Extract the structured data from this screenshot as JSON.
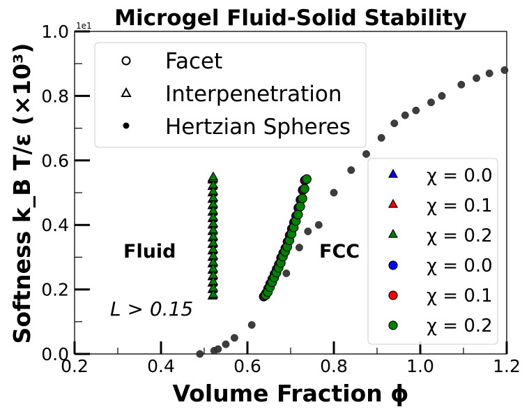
{
  "chart_data": {
    "type": "scatter",
    "title": "Microgel Fluid-Solid Stability",
    "xlabel": "Volume Fraction ϕ",
    "ylabel": "Softness k_B T/ε (×10³)",
    "xlim": [
      0.2,
      1.2
    ],
    "ylim": [
      0.0,
      1.0
    ],
    "x_ticks": [
      "0.2",
      "0.4",
      "0.6",
      "0.8",
      "1.0",
      "1.2"
    ],
    "y_ticks": [
      "0.0",
      "0.2",
      "0.4",
      "0.6",
      "0.8",
      "1.0"
    ],
    "y_offset_text": "1e1",
    "annotations": [
      {
        "text": "Fluid",
        "x": 0.38,
        "y": 0.31
      },
      {
        "text": "FCC",
        "x": 0.81,
        "y": 0.31
      },
      {
        "text": "L > 0.15",
        "x": 0.37,
        "y": 0.14
      }
    ],
    "legend_markers": {
      "placement": "upper-left",
      "entries": [
        {
          "marker": "open-circle",
          "label": "Facet"
        },
        {
          "marker": "open-triangle",
          "label": "Interpenetration"
        },
        {
          "marker": "filled-circle",
          "label": "Hertzian Spheres"
        }
      ]
    },
    "legend_chi": {
      "placement": "lower-right",
      "entries": [
        {
          "marker": "triangle",
          "color": "#0000ff",
          "label": "χ = 0.0"
        },
        {
          "marker": "triangle",
          "color": "#ff0000",
          "label": "χ = 0.1"
        },
        {
          "marker": "triangle",
          "color": "#008000",
          "label": "χ = 0.2"
        },
        {
          "marker": "circle",
          "color": "#0000ff",
          "label": "χ = 0.0"
        },
        {
          "marker": "circle",
          "color": "#ff0000",
          "label": "χ = 0.1"
        },
        {
          "marker": "circle",
          "color": "#008000",
          "label": "χ = 0.2"
        }
      ]
    },
    "series": [
      {
        "label": "Hertzian Spheres",
        "marker": "filled-circle",
        "color": "#333333",
        "x": [
          0.49,
          0.523,
          0.532,
          0.55,
          0.57,
          0.61,
          0.69,
          0.72,
          0.74,
          0.765,
          0.8,
          0.84,
          0.875,
          0.91,
          0.94,
          0.965,
          0.99,
          1.025,
          1.05,
          1.095,
          1.13,
          1.16,
          1.195
        ],
        "y": [
          0.0,
          0.01,
          0.015,
          0.03,
          0.05,
          0.09,
          0.25,
          0.33,
          0.38,
          0.4,
          0.5,
          0.57,
          0.62,
          0.67,
          0.715,
          0.74,
          0.755,
          0.78,
          0.8,
          0.835,
          0.855,
          0.87,
          0.88
        ]
      },
      {
        "label": "Interpenetration (χ = 0.0, 0.1, 0.2)",
        "marker": "triangle",
        "colors": [
          "#0000ff",
          "#ff0000",
          "#008000"
        ],
        "x": [
          0.52,
          0.52,
          0.52,
          0.52,
          0.52,
          0.52,
          0.52,
          0.52,
          0.52,
          0.52,
          0.52,
          0.52,
          0.52,
          0.52,
          0.52,
          0.52,
          0.52,
          0.52,
          0.52,
          0.52
        ],
        "y": [
          0.18,
          0.2,
          0.22,
          0.24,
          0.26,
          0.28,
          0.3,
          0.32,
          0.34,
          0.36,
          0.38,
          0.4,
          0.42,
          0.44,
          0.46,
          0.48,
          0.5,
          0.52,
          0.54,
          0.545
        ]
      },
      {
        "label": "Facet (χ = 0.0, 0.1, 0.2)",
        "marker": "circle",
        "colors": [
          "#0000ff",
          "#ff0000",
          "#008000"
        ],
        "x": [
          0.64,
          0.645,
          0.65,
          0.655,
          0.66,
          0.665,
          0.67,
          0.675,
          0.68,
          0.685,
          0.69,
          0.695,
          0.7,
          0.705,
          0.71,
          0.715,
          0.72,
          0.725,
          0.73,
          0.735
        ],
        "y": [
          0.18,
          0.19,
          0.205,
          0.22,
          0.235,
          0.25,
          0.265,
          0.28,
          0.3,
          0.315,
          0.33,
          0.35,
          0.37,
          0.39,
          0.41,
          0.43,
          0.455,
          0.48,
          0.51,
          0.54
        ]
      }
    ]
  }
}
